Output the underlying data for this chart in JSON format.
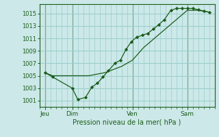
{
  "background_color": "#cce8e8",
  "grid_color": "#99cccc",
  "line_color": "#1a5c1a",
  "marker_color": "#1a5c1a",
  "xlabel": "Pression niveau de la mer( hPa )",
  "ylim": [
    1000.0,
    1016.5
  ],
  "yticks": [
    1001,
    1003,
    1005,
    1007,
    1009,
    1011,
    1013,
    1015
  ],
  "xlim": [
    0,
    16
  ],
  "day_labels": [
    "Jeu",
    "Dim",
    "Ven",
    "Sam"
  ],
  "day_positions": [
    0.5,
    3.0,
    8.5,
    13.5
  ],
  "vlines": [
    0.5,
    3.0,
    8.5,
    13.5
  ],
  "line_with_markers": {
    "x": [
      0.5,
      1.2,
      3.0,
      3.5,
      4.2,
      4.8,
      5.3,
      5.8,
      6.3,
      6.9,
      7.4,
      7.9,
      8.4,
      8.9,
      9.4,
      9.9,
      10.4,
      10.9,
      11.4,
      12.0,
      12.5,
      13.0,
      13.5,
      14.0,
      14.5,
      15.0,
      15.5
    ],
    "y": [
      1005.5,
      1004.8,
      1003.0,
      1001.2,
      1001.5,
      1003.2,
      1003.8,
      1004.8,
      1005.8,
      1007.0,
      1007.5,
      1009.2,
      1010.5,
      1011.2,
      1011.5,
      1011.8,
      1012.5,
      1013.2,
      1014.0,
      1015.5,
      1015.8,
      1015.8,
      1015.8,
      1015.8,
      1015.6,
      1015.4,
      1015.2
    ]
  },
  "line_smooth": {
    "x": [
      0.5,
      1.2,
      3.0,
      4.5,
      6.0,
      7.5,
      8.5,
      9.5,
      10.5,
      11.5,
      12.5,
      13.5,
      14.5,
      15.5
    ],
    "y": [
      1005.5,
      1005.0,
      1005.0,
      1005.0,
      1005.5,
      1006.5,
      1007.5,
      1009.5,
      1011.0,
      1012.5,
      1014.0,
      1015.5,
      1015.5,
      1015.2
    ]
  }
}
